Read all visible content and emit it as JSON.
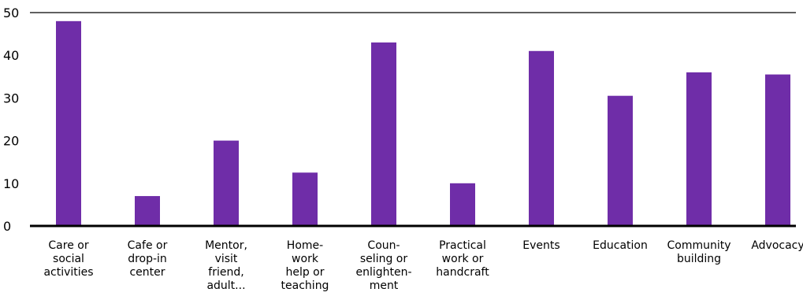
{
  "chart_data": {
    "type": "bar",
    "categories": [
      [
        "Care or",
        "social",
        "activities"
      ],
      [
        "Cafe or",
        "drop-in",
        "center"
      ],
      [
        "Mentor,",
        "visit",
        "friend,",
        "adult..."
      ],
      [
        "Home-",
        "work",
        "help or",
        "teaching"
      ],
      [
        "Coun-",
        "seling or",
        "enlighten-",
        "ment"
      ],
      [
        "Practical",
        "work or",
        "handcraft"
      ],
      [
        "Events"
      ],
      [
        "Education"
      ],
      [
        "Community",
        "building"
      ],
      [
        "Advocacy"
      ]
    ],
    "values": [
      48,
      7,
      20,
      12.5,
      43,
      10,
      41,
      30.5,
      36,
      35.5
    ],
    "yticks": [
      0,
      10,
      20,
      30,
      40,
      50
    ],
    "ylim": [
      0,
      50
    ],
    "title": "",
    "xlabel": "",
    "ylabel": "",
    "grid": false,
    "bar_color": "#6f2da8",
    "axis_color": "#000000"
  }
}
